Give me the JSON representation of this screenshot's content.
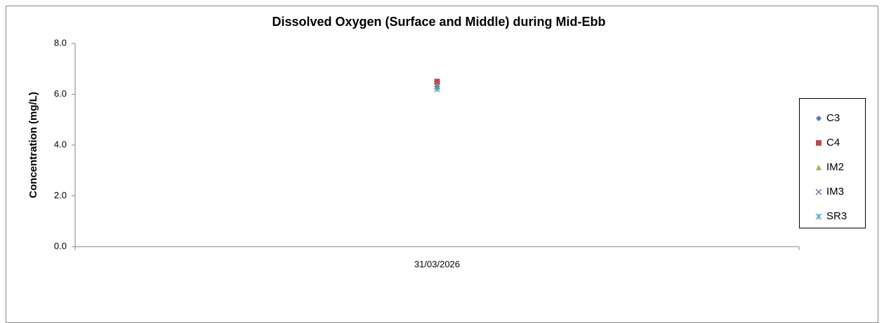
{
  "chart_data": {
    "type": "scatter",
    "title": "Dissolved Oxygen (Surface and Middle) during Mid-Ebb",
    "y_label": "Concentration (mg/L)",
    "categories": [
      "31/03/2026"
    ],
    "series": [
      {
        "name": "C3",
        "color": "#4a7ebb",
        "marker": "diamond",
        "values": [
          6.3
        ]
      },
      {
        "name": "C4",
        "color": "#be4b48",
        "marker": "square",
        "values": [
          6.5
        ]
      },
      {
        "name": "IM2",
        "color": "#98b954",
        "marker": "triangle",
        "values": [
          6.3
        ]
      },
      {
        "name": "IM3",
        "color": "#7d60a0",
        "marker": "x",
        "values": [
          6.3
        ]
      },
      {
        "name": "SR3",
        "color": "#46aac5",
        "marker": "star",
        "values": [
          6.2
        ]
      }
    ],
    "ylim": [
      0,
      8
    ],
    "yticks": [
      {
        "value": 0,
        "label": "0.0"
      },
      {
        "value": 2,
        "label": "2.0"
      },
      {
        "value": 4,
        "label": "4.0"
      },
      {
        "value": 6,
        "label": "6.0"
      },
      {
        "value": 8,
        "label": "8.0"
      }
    ],
    "legend": "right"
  }
}
